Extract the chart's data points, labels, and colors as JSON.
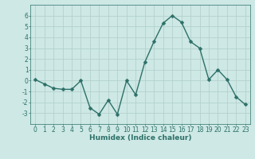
{
  "x": [
    0,
    1,
    2,
    3,
    4,
    5,
    6,
    7,
    8,
    9,
    10,
    11,
    12,
    13,
    14,
    15,
    16,
    17,
    18,
    19,
    20,
    21,
    22,
    23
  ],
  "y": [
    0.1,
    -0.3,
    -0.7,
    -0.8,
    -0.8,
    0.0,
    -2.5,
    -3.1,
    -1.8,
    -3.1,
    0.0,
    -1.3,
    1.7,
    3.6,
    5.3,
    6.0,
    5.4,
    3.6,
    3.0,
    0.1,
    1.0,
    0.1,
    -1.5,
    -2.2
  ],
  "line_color": "#2d7068",
  "marker_color": "#2d7068",
  "bg_color": "#cde8e5",
  "plot_bg_color": "#cde8e5",
  "grid_color": "#b0cdc9",
  "xlabel": "Humidex (Indice chaleur)",
  "ylim": [
    -4,
    7
  ],
  "xlim": [
    -0.5,
    23.5
  ],
  "yticks": [
    -3,
    -2,
    -1,
    0,
    1,
    2,
    3,
    4,
    5,
    6
  ],
  "xticks": [
    0,
    1,
    2,
    3,
    4,
    5,
    6,
    7,
    8,
    9,
    10,
    11,
    12,
    13,
    14,
    15,
    16,
    17,
    18,
    19,
    20,
    21,
    22,
    23
  ],
  "xlabel_fontsize": 6.5,
  "tick_fontsize": 5.5,
  "line_width": 1.0,
  "marker_size": 2.5
}
